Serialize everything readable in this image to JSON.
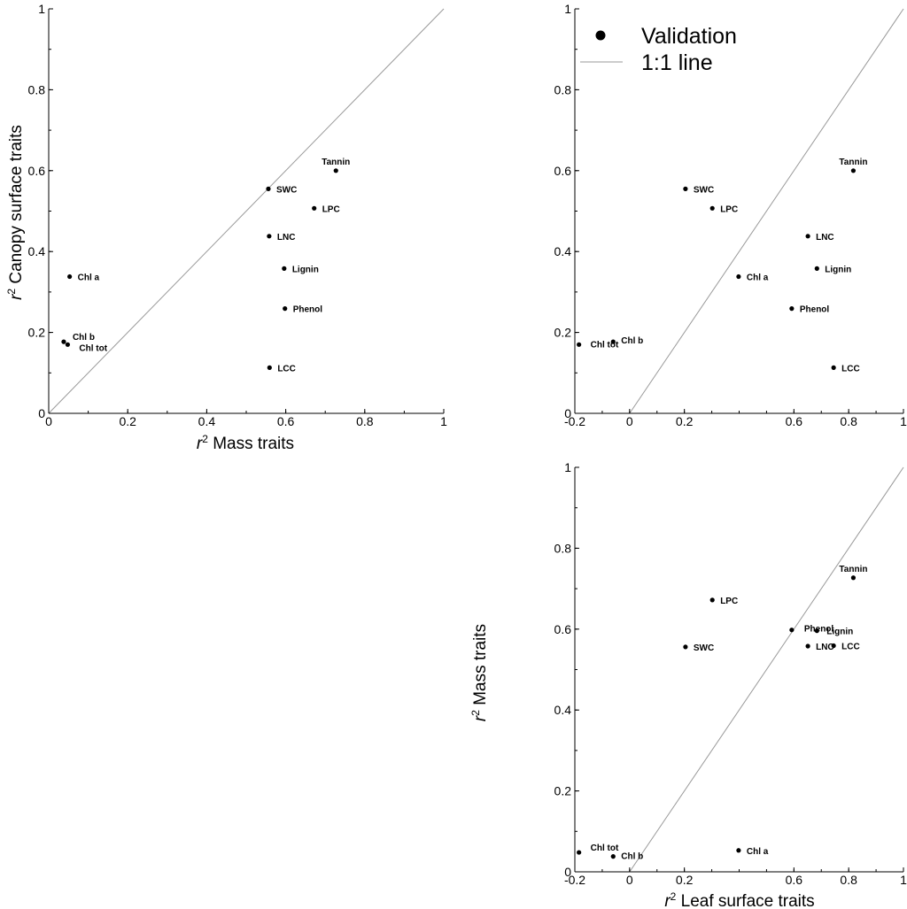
{
  "legend": {
    "validation_label": "Validation",
    "line_label": "1:1 line"
  },
  "chart_data": [
    {
      "type": "scatter",
      "panel": "top-left",
      "xlabel": "Mass traits",
      "ylabel": "Canopy surface traits",
      "xlim": [
        0,
        1
      ],
      "ylim": [
        0,
        1
      ],
      "xticks": [
        "0",
        "0.2",
        "0.4",
        "0.6",
        "0.8",
        "1"
      ],
      "yticks": [
        "0",
        "0.2",
        "0.4",
        "0.6",
        "0.8",
        "1"
      ],
      "grid": false,
      "identity_line": true,
      "points": [
        {
          "label": "Tannin",
          "x": 0.727,
          "y": 0.6
        },
        {
          "label": "SWC",
          "x": 0.556,
          "y": 0.555
        },
        {
          "label": "LPC",
          "x": 0.672,
          "y": 0.507
        },
        {
          "label": "LNC",
          "x": 0.558,
          "y": 0.438
        },
        {
          "label": "Lignin",
          "x": 0.596,
          "y": 0.358
        },
        {
          "label": "Phenol",
          "x": 0.598,
          "y": 0.259
        },
        {
          "label": "LCC",
          "x": 0.559,
          "y": 0.113
        },
        {
          "label": "Chl a",
          "x": 0.053,
          "y": 0.338
        },
        {
          "label": "Chl b",
          "x": 0.038,
          "y": 0.177
        },
        {
          "label": "Chl tot",
          "x": 0.048,
          "y": 0.17
        }
      ]
    },
    {
      "type": "scatter",
      "panel": "top-right",
      "xlabel": "Leaf surface traits",
      "ylabel": "Canopy surface traits",
      "xlim": [
        -0.2,
        1
      ],
      "ylim": [
        0,
        1
      ],
      "xticks": [
        "-0.2",
        "0",
        "0.2",
        "0.6",
        "0.8",
        "1"
      ],
      "yticks": [
        "0",
        "0.2",
        "0.4",
        "0.6",
        "0.8",
        "1"
      ],
      "grid": false,
      "identity_line": true,
      "points": [
        {
          "label": "Tannin",
          "x": 0.817,
          "y": 0.6
        },
        {
          "label": "SWC",
          "x": 0.204,
          "y": 0.555
        },
        {
          "label": "LPC",
          "x": 0.302,
          "y": 0.507
        },
        {
          "label": "LNC",
          "x": 0.651,
          "y": 0.438
        },
        {
          "label": "Lignin",
          "x": 0.684,
          "y": 0.358
        },
        {
          "label": "Chl a",
          "x": 0.398,
          "y": 0.338
        },
        {
          "label": "Phenol",
          "x": 0.592,
          "y": 0.259
        },
        {
          "label": "LCC",
          "x": 0.745,
          "y": 0.113
        },
        {
          "label": "Chl tot",
          "x": -0.185,
          "y": 0.17
        },
        {
          "label": "Chl b",
          "x": -0.06,
          "y": 0.177
        }
      ]
    },
    {
      "type": "scatter",
      "panel": "bottom-right",
      "xlabel": "Leaf surface traits",
      "ylabel": "Mass traits",
      "xlim": [
        -0.2,
        1
      ],
      "ylim": [
        0,
        1
      ],
      "xticks": [
        "-0.2",
        "0",
        "0.2",
        "0.6",
        "0.8",
        "1"
      ],
      "yticks": [
        "0",
        "0.2",
        "0.4",
        "0.6",
        "0.8",
        "1"
      ],
      "grid": false,
      "identity_line": true,
      "points": [
        {
          "label": "Tannin",
          "x": 0.817,
          "y": 0.727
        },
        {
          "label": "LPC",
          "x": 0.302,
          "y": 0.672
        },
        {
          "label": "Phenol",
          "x": 0.592,
          "y": 0.598
        },
        {
          "label": "Lignin",
          "x": 0.684,
          "y": 0.596
        },
        {
          "label": "SWC",
          "x": 0.204,
          "y": 0.556
        },
        {
          "label": "LNC",
          "x": 0.651,
          "y": 0.558
        },
        {
          "label": "LCC",
          "x": 0.745,
          "y": 0.559
        },
        {
          "label": "Chl a",
          "x": 0.398,
          "y": 0.053
        },
        {
          "label": "Chl tot",
          "x": -0.185,
          "y": 0.048
        },
        {
          "label": "Chl b",
          "x": -0.06,
          "y": 0.038
        }
      ]
    }
  ]
}
